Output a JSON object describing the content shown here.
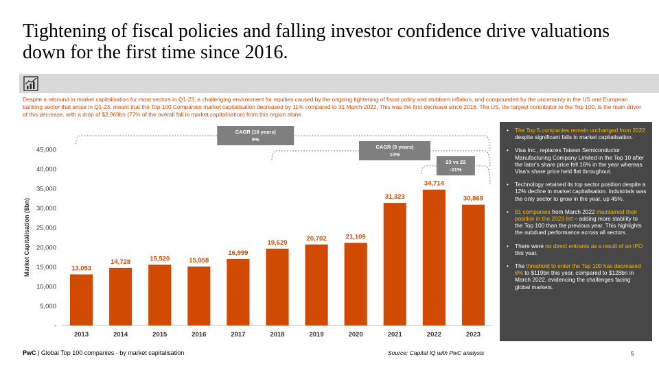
{
  "title": "Tightening of fiscal policies and falling investor confidence drive valuations down for the first time since 2016.",
  "icon": "bar-chart-trend-icon",
  "intro": "Despite a rebound in market capitalisation for most sectors in Q1-23, a challenging environment for equities caused by the ongoing tightening of fiscal policy and stubborn inflation, and compounded by the uncertainty in the US and European banking sector that arose in Q1-23, meant that the Top 100 Companies market capitalisation decreased by 11% compared to 31 March 2022. This was the first decrease since 2016. The US, the largest contributor to the Top 100, is the main driver of this decrease, with a drop of $2,969bn (77% of the overall fall in market capitalisation) from this region alone.",
  "colors": {
    "accent": "#d04a02",
    "highlight": "#ffb600",
    "panel": "#474747",
    "annotation": "#7f7f7f"
  },
  "chart_data": {
    "type": "bar",
    "title": "",
    "xlabel": "",
    "ylabel": "Market Capitalisation ($bn)",
    "categories": [
      "2013",
      "2014",
      "2015",
      "2016",
      "2017",
      "2018",
      "2019",
      "2020",
      "2021",
      "2022",
      "2023"
    ],
    "values": [
      13053,
      14728,
      15520,
      15058,
      16999,
      19629,
      20702,
      21109,
      31323,
      34714,
      30869
    ],
    "value_labels": [
      "13,053",
      "14,728",
      "15,520",
      "15,058",
      "16,999",
      "19,629",
      "20,702",
      "21,109",
      "31,323",
      "34,714",
      "30,869"
    ],
    "ylim": [
      0,
      45000
    ],
    "yticks": [
      0,
      5000,
      10000,
      15000,
      20000,
      25000,
      30000,
      35000,
      40000,
      45000
    ],
    "ytick_labels": [
      "-",
      "5,000",
      "10,000",
      "15,000",
      "20,000",
      "25,000",
      "30,000",
      "35,000",
      "40,000",
      "45,000"
    ],
    "grid": false,
    "annotations": [
      {
        "line1": "CAGR (10 years)",
        "line2": "9%",
        "from": "2013",
        "to": "2023"
      },
      {
        "line1": "CAGR (5 years)",
        "line2": "10%",
        "from": "2018",
        "to": "2023"
      },
      {
        "line1": "23 vs 22",
        "line2": "-11%",
        "from": "2022",
        "to": "2023"
      }
    ]
  },
  "panel": {
    "items": [
      [
        {
          "t": "The Top 5 companies remain unchanged from 2022",
          "h": true
        },
        {
          "t": " despite significant falls in market capitalisation.",
          "h": false
        }
      ],
      [
        {
          "t": "Visa Inc., replaces Taiwan Semiconductor Manufacturing Company Limited in the Top 10 after the later's share price fell 16% in the year whereas Visa's share price held flat throughout.",
          "h": false
        }
      ],
      [
        {
          "t": "Technology retained its top sector position despite a 12% decline in market capitalisation. Industrials was the only sector to grow in the year, up 45%.",
          "h": false
        }
      ],
      [
        {
          "t": "91 companies",
          "h": true
        },
        {
          "t": " from March 2022 ",
          "h": false
        },
        {
          "t": "maintained their position in the 2023 list",
          "h": true
        },
        {
          "t": " – adding more stability to the Top 100 than the previous year. This highlights the subdued performance across all sectors.",
          "h": false
        }
      ],
      [
        {
          "t": "There were ",
          "h": false
        },
        {
          "t": "no direct entrants as a result of an IPO",
          "h": true
        },
        {
          "t": " this year.",
          "h": false
        }
      ],
      [
        {
          "t": "The ",
          "h": false
        },
        {
          "t": "threshold to enter the Top 100 has decreased 8%",
          "h": true
        },
        {
          "t": " to $119bn this year, compared to $128bn in March 2022, evidencing the challenges facing global markets.",
          "h": false
        }
      ]
    ]
  },
  "footer": {
    "brand": "PwC",
    "separator": " | ",
    "text": "Global Top 100 companies - by market capitalisation"
  },
  "source": "Source: Capital IQ with PwC analysis",
  "page_number": "5"
}
